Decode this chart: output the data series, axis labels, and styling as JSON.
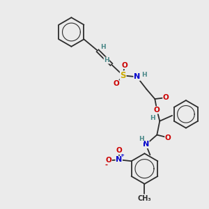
{
  "background_color": "#ebebeb",
  "fig_width": 3.0,
  "fig_height": 3.0,
  "dpi": 100,
  "bond_color": "#2d2d2d",
  "atom_colors": {
    "H": "#4a8888",
    "O": "#cc0000",
    "N": "#0000cc",
    "S": "#ccaa00"
  },
  "font_size": 8.0,
  "font_size_small": 6.5
}
